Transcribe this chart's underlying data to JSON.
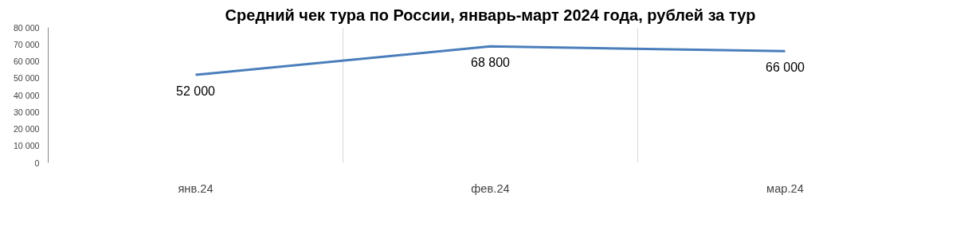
{
  "chart_data": {
    "type": "line",
    "title": "Средний чек тура по России, январь-март 2024 года, рублей за тур",
    "categories": [
      "янв.24",
      "фев.24",
      "мар.24"
    ],
    "series": [
      {
        "color": "#4a7ebb",
        "values": [
          52000,
          68800,
          66000
        ],
        "value_labels": [
          "52 000",
          "68 800",
          "66 000"
        ]
      }
    ],
    "ylim": [
      0,
      80000
    ],
    "yticks": [
      {
        "value": 0,
        "label": "0"
      },
      {
        "value": 10000,
        "label": "10 000"
      },
      {
        "value": 20000,
        "label": "20 000"
      },
      {
        "value": 30000,
        "label": "30 000"
      },
      {
        "value": 40000,
        "label": "40 000"
      },
      {
        "value": 50000,
        "label": "50 000"
      },
      {
        "value": 60000,
        "label": "60 000"
      },
      {
        "value": 70000,
        "label": "70 000"
      },
      {
        "value": 80000,
        "label": "80 000"
      }
    ],
    "grid": "x",
    "marker": "none",
    "line_style": "solid"
  }
}
